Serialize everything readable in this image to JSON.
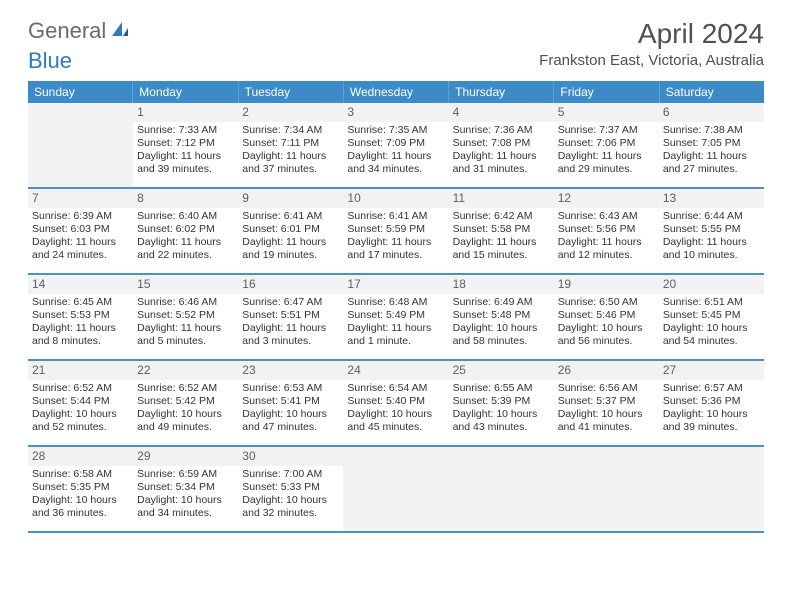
{
  "logo": {
    "gray": "General",
    "blue": "Blue"
  },
  "title": "April 2024",
  "location": "Frankston East, Victoria, Australia",
  "colors": {
    "header_bg": "#3b8bc9",
    "header_text": "#ffffff",
    "daynum_bg": "#f2f2f2",
    "week_border": "#4a8fc5",
    "logo_gray": "#6a6a6a",
    "logo_blue": "#2f7bbf"
  },
  "dayNames": [
    "Sunday",
    "Monday",
    "Tuesday",
    "Wednesday",
    "Thursday",
    "Friday",
    "Saturday"
  ],
  "weeks": [
    [
      {
        "empty": true
      },
      {
        "num": "1",
        "sunrise": "Sunrise: 7:33 AM",
        "sunset": "Sunset: 7:12 PM",
        "daylight1": "Daylight: 11 hours",
        "daylight2": "and 39 minutes."
      },
      {
        "num": "2",
        "sunrise": "Sunrise: 7:34 AM",
        "sunset": "Sunset: 7:11 PM",
        "daylight1": "Daylight: 11 hours",
        "daylight2": "and 37 minutes."
      },
      {
        "num": "3",
        "sunrise": "Sunrise: 7:35 AM",
        "sunset": "Sunset: 7:09 PM",
        "daylight1": "Daylight: 11 hours",
        "daylight2": "and 34 minutes."
      },
      {
        "num": "4",
        "sunrise": "Sunrise: 7:36 AM",
        "sunset": "Sunset: 7:08 PM",
        "daylight1": "Daylight: 11 hours",
        "daylight2": "and 31 minutes."
      },
      {
        "num": "5",
        "sunrise": "Sunrise: 7:37 AM",
        "sunset": "Sunset: 7:06 PM",
        "daylight1": "Daylight: 11 hours",
        "daylight2": "and 29 minutes."
      },
      {
        "num": "6",
        "sunrise": "Sunrise: 7:38 AM",
        "sunset": "Sunset: 7:05 PM",
        "daylight1": "Daylight: 11 hours",
        "daylight2": "and 27 minutes."
      }
    ],
    [
      {
        "num": "7",
        "sunrise": "Sunrise: 6:39 AM",
        "sunset": "Sunset: 6:03 PM",
        "daylight1": "Daylight: 11 hours",
        "daylight2": "and 24 minutes."
      },
      {
        "num": "8",
        "sunrise": "Sunrise: 6:40 AM",
        "sunset": "Sunset: 6:02 PM",
        "daylight1": "Daylight: 11 hours",
        "daylight2": "and 22 minutes."
      },
      {
        "num": "9",
        "sunrise": "Sunrise: 6:41 AM",
        "sunset": "Sunset: 6:01 PM",
        "daylight1": "Daylight: 11 hours",
        "daylight2": "and 19 minutes."
      },
      {
        "num": "10",
        "sunrise": "Sunrise: 6:41 AM",
        "sunset": "Sunset: 5:59 PM",
        "daylight1": "Daylight: 11 hours",
        "daylight2": "and 17 minutes."
      },
      {
        "num": "11",
        "sunrise": "Sunrise: 6:42 AM",
        "sunset": "Sunset: 5:58 PM",
        "daylight1": "Daylight: 11 hours",
        "daylight2": "and 15 minutes."
      },
      {
        "num": "12",
        "sunrise": "Sunrise: 6:43 AM",
        "sunset": "Sunset: 5:56 PM",
        "daylight1": "Daylight: 11 hours",
        "daylight2": "and 12 minutes."
      },
      {
        "num": "13",
        "sunrise": "Sunrise: 6:44 AM",
        "sunset": "Sunset: 5:55 PM",
        "daylight1": "Daylight: 11 hours",
        "daylight2": "and 10 minutes."
      }
    ],
    [
      {
        "num": "14",
        "sunrise": "Sunrise: 6:45 AM",
        "sunset": "Sunset: 5:53 PM",
        "daylight1": "Daylight: 11 hours",
        "daylight2": "and 8 minutes."
      },
      {
        "num": "15",
        "sunrise": "Sunrise: 6:46 AM",
        "sunset": "Sunset: 5:52 PM",
        "daylight1": "Daylight: 11 hours",
        "daylight2": "and 5 minutes."
      },
      {
        "num": "16",
        "sunrise": "Sunrise: 6:47 AM",
        "sunset": "Sunset: 5:51 PM",
        "daylight1": "Daylight: 11 hours",
        "daylight2": "and 3 minutes."
      },
      {
        "num": "17",
        "sunrise": "Sunrise: 6:48 AM",
        "sunset": "Sunset: 5:49 PM",
        "daylight1": "Daylight: 11 hours",
        "daylight2": "and 1 minute."
      },
      {
        "num": "18",
        "sunrise": "Sunrise: 6:49 AM",
        "sunset": "Sunset: 5:48 PM",
        "daylight1": "Daylight: 10 hours",
        "daylight2": "and 58 minutes."
      },
      {
        "num": "19",
        "sunrise": "Sunrise: 6:50 AM",
        "sunset": "Sunset: 5:46 PM",
        "daylight1": "Daylight: 10 hours",
        "daylight2": "and 56 minutes."
      },
      {
        "num": "20",
        "sunrise": "Sunrise: 6:51 AM",
        "sunset": "Sunset: 5:45 PM",
        "daylight1": "Daylight: 10 hours",
        "daylight2": "and 54 minutes."
      }
    ],
    [
      {
        "num": "21",
        "sunrise": "Sunrise: 6:52 AM",
        "sunset": "Sunset: 5:44 PM",
        "daylight1": "Daylight: 10 hours",
        "daylight2": "and 52 minutes."
      },
      {
        "num": "22",
        "sunrise": "Sunrise: 6:52 AM",
        "sunset": "Sunset: 5:42 PM",
        "daylight1": "Daylight: 10 hours",
        "daylight2": "and 49 minutes."
      },
      {
        "num": "23",
        "sunrise": "Sunrise: 6:53 AM",
        "sunset": "Sunset: 5:41 PM",
        "daylight1": "Daylight: 10 hours",
        "daylight2": "and 47 minutes."
      },
      {
        "num": "24",
        "sunrise": "Sunrise: 6:54 AM",
        "sunset": "Sunset: 5:40 PM",
        "daylight1": "Daylight: 10 hours",
        "daylight2": "and 45 minutes."
      },
      {
        "num": "25",
        "sunrise": "Sunrise: 6:55 AM",
        "sunset": "Sunset: 5:39 PM",
        "daylight1": "Daylight: 10 hours",
        "daylight2": "and 43 minutes."
      },
      {
        "num": "26",
        "sunrise": "Sunrise: 6:56 AM",
        "sunset": "Sunset: 5:37 PM",
        "daylight1": "Daylight: 10 hours",
        "daylight2": "and 41 minutes."
      },
      {
        "num": "27",
        "sunrise": "Sunrise: 6:57 AM",
        "sunset": "Sunset: 5:36 PM",
        "daylight1": "Daylight: 10 hours",
        "daylight2": "and 39 minutes."
      }
    ],
    [
      {
        "num": "28",
        "sunrise": "Sunrise: 6:58 AM",
        "sunset": "Sunset: 5:35 PM",
        "daylight1": "Daylight: 10 hours",
        "daylight2": "and 36 minutes."
      },
      {
        "num": "29",
        "sunrise": "Sunrise: 6:59 AM",
        "sunset": "Sunset: 5:34 PM",
        "daylight1": "Daylight: 10 hours",
        "daylight2": "and 34 minutes."
      },
      {
        "num": "30",
        "sunrise": "Sunrise: 7:00 AM",
        "sunset": "Sunset: 5:33 PM",
        "daylight1": "Daylight: 10 hours",
        "daylight2": "and 32 minutes."
      },
      {
        "empty": true
      },
      {
        "empty": true
      },
      {
        "empty": true
      },
      {
        "empty": true
      }
    ]
  ]
}
